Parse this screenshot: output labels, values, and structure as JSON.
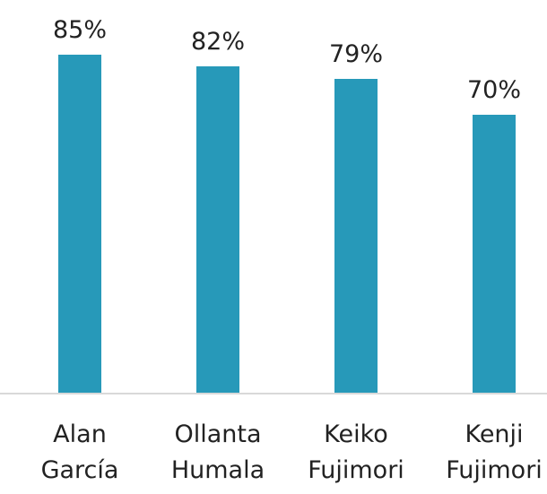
{
  "chart_data": {
    "type": "bar",
    "categories": [
      "Alan García",
      "Ollanta Humala",
      "Keiko Fujimori",
      "Kenji Fujimori"
    ],
    "values": [
      85,
      82,
      79,
      70
    ],
    "value_labels": [
      "85%",
      "82%",
      "79%",
      "70%"
    ],
    "color": "#2799b9"
  }
}
